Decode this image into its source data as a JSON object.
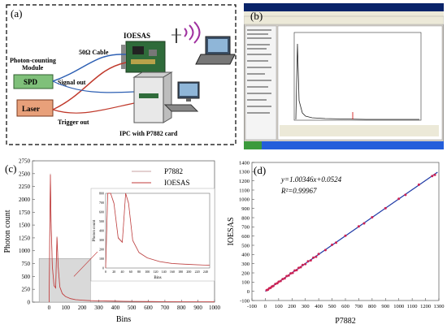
{
  "panel_a": {
    "label": "(a)",
    "labels": {
      "ioesas": "IOESAS",
      "cable": "50Ω Cable",
      "module_line1": "Photon-counting",
      "module_line2": "Module",
      "spd": "SPD",
      "signal_out": "Signal out",
      "laser": "Laser",
      "trigger_out": "Trigger out",
      "ipc": "IPC with P7882 card"
    }
  },
  "panel_b": {
    "label": "(b)"
  },
  "panel_c": {
    "label": "(c)",
    "ylabel": "Photon count",
    "xlabel": "Bins",
    "legend": [
      "P7882",
      "IOESAS"
    ],
    "inset_xlabel": "Bins",
    "inset_ylabel": "Photon count",
    "colors": {
      "p7882": "#c9a0a0",
      "ioesas": "#c23b3b"
    }
  },
  "panel_d": {
    "label": "(d)",
    "ylabel": "IOESAS",
    "xlabel": "P7882",
    "equation": "y=1.00346x+0.0524",
    "r2": "R²=0.99967",
    "colors": {
      "line": "#1f3aa6",
      "points": "#cc2255"
    }
  },
  "chart_data": [
    {
      "type": "line",
      "panel": "c",
      "xlabel": "Bins",
      "ylabel": "Photon count",
      "xlim": [
        -100,
        1000
      ],
      "ylim": [
        0,
        2750
      ],
      "xticks": [
        0,
        100,
        200,
        300,
        400,
        500,
        600,
        700,
        800,
        900,
        1000
      ],
      "yticks": [
        0,
        250,
        500,
        750,
        1000,
        1250,
        1500,
        1750,
        2000,
        2250,
        2500,
        2750
      ],
      "series": [
        {
          "name": "P7882",
          "x": [
            0,
            5,
            8,
            12,
            20,
            30,
            40,
            48,
            55,
            65,
            80,
            100,
            130,
            160,
            200,
            250,
            300,
            400,
            500,
            600,
            700,
            800,
            900,
            1000
          ],
          "y": [
            0,
            1600,
            2500,
            1600,
            700,
            330,
            280,
            1280,
            700,
            300,
            170,
            110,
            70,
            50,
            40,
            30,
            25,
            20,
            15,
            12,
            10,
            8,
            7,
            5
          ]
        },
        {
          "name": "IOESAS",
          "x": [
            0,
            5,
            8,
            12,
            20,
            30,
            40,
            48,
            55,
            65,
            80,
            100,
            130,
            160,
            200,
            250,
            300,
            400,
            500,
            600,
            700,
            800,
            900,
            1000
          ],
          "y": [
            0,
            1580,
            2480,
            1580,
            690,
            320,
            275,
            1260,
            690,
            295,
            165,
            108,
            68,
            48,
            38,
            29,
            24,
            19,
            14,
            11,
            9,
            7,
            6,
            5
          ]
        }
      ],
      "inset": {
        "xlim": [
          0,
          250
        ],
        "ylim": [
          0,
          800
        ],
        "xticks": [
          0,
          20,
          40,
          60,
          80,
          100,
          120,
          140,
          160,
          180,
          200,
          220,
          240
        ],
        "yticks": [
          0,
          100,
          200,
          300,
          400,
          500,
          600,
          700,
          800
        ]
      }
    },
    {
      "type": "scatter",
      "panel": "d",
      "xlabel": "P7882",
      "ylabel": "IOESAS",
      "xlim": [
        -100,
        1300
      ],
      "ylim": [
        -100,
        1400
      ],
      "xticks": [
        -100,
        0,
        100,
        200,
        300,
        400,
        500,
        600,
        700,
        800,
        900,
        1000,
        1100,
        1200,
        1300
      ],
      "yticks": [
        -100,
        0,
        100,
        200,
        300,
        400,
        500,
        600,
        700,
        800,
        900,
        1000,
        1100,
        1200,
        1300,
        1400
      ],
      "fit": {
        "slope": 1.00346,
        "intercept": 0.0524,
        "r2": 0.99967
      },
      "points": [
        [
          10,
          12
        ],
        [
          20,
          18
        ],
        [
          30,
          33
        ],
        [
          40,
          38
        ],
        [
          50,
          52
        ],
        [
          60,
          58
        ],
        [
          75,
          80
        ],
        [
          90,
          88
        ],
        [
          100,
          104
        ],
        [
          115,
          112
        ],
        [
          130,
          133
        ],
        [
          145,
          140
        ],
        [
          160,
          165
        ],
        [
          175,
          172
        ],
        [
          190,
          195
        ],
        [
          205,
          200
        ],
        [
          220,
          226
        ],
        [
          235,
          230
        ],
        [
          250,
          254
        ],
        [
          265,
          262
        ],
        [
          280,
          286
        ],
        [
          300,
          296
        ],
        [
          320,
          325
        ],
        [
          340,
          336
        ],
        [
          360,
          366
        ],
        [
          380,
          376
        ],
        [
          400,
          405
        ],
        [
          450,
          448
        ],
        [
          500,
          505
        ],
        [
          530,
          528
        ],
        [
          600,
          604
        ],
        [
          700,
          706
        ],
        [
          740,
          738
        ],
        [
          800,
          804
        ],
        [
          900,
          902
        ],
        [
          1000,
          1006
        ],
        [
          1050,
          1048
        ],
        [
          1150,
          1158
        ],
        [
          1250,
          1252
        ],
        [
          1270,
          1266
        ]
      ]
    }
  ]
}
